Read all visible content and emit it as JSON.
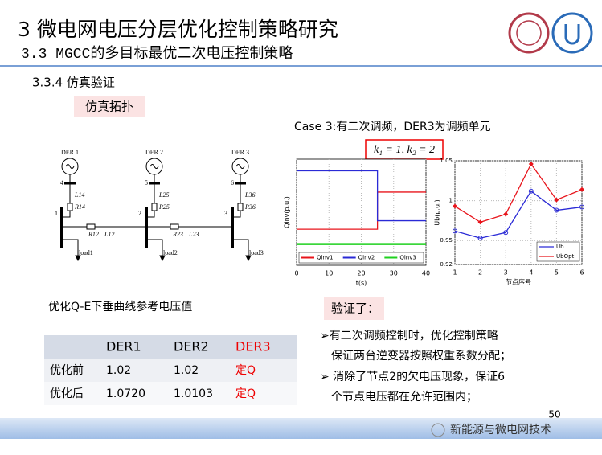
{
  "header": {
    "title": "3 微电网电压分层优化控制策略研究",
    "subtitle": "3.3 MGCC的多目标最优二次电压控制策略",
    "section": "3.3.4 仿真验证",
    "tag": "仿真拓扑"
  },
  "circuit": {
    "der": [
      "DER 1",
      "DER 2",
      "DER 3"
    ],
    "der_nodes": [
      "4",
      "5",
      "6"
    ],
    "buses": [
      "1",
      "2",
      "3"
    ],
    "branch": [
      "L14",
      "R14",
      "L25",
      "R25",
      "L36",
      "R36"
    ],
    "lines": [
      "R12",
      "L12",
      "R23",
      "L23"
    ],
    "loads": [
      "load1",
      "load2",
      "load3"
    ]
  },
  "case_title": "Case 3:有二次调频，DER3为调频单元",
  "formula": "k₁ = 1, k₂ = 2",
  "chart_data": [
    {
      "type": "line",
      "xlabel": "t(s)",
      "ylabel": "Qinv(p.u.)",
      "x": [
        0,
        25,
        25,
        40
      ],
      "xlim": [
        0,
        40
      ],
      "xticks": [
        0,
        10,
        20,
        30,
        40
      ],
      "ylim": [
        -0.2,
        0.8
      ],
      "grid": true,
      "series": [
        {
          "name": "Qinv1",
          "color": "#e8141b",
          "values": [
            0.14,
            0.14,
            0.49,
            0.49
          ]
        },
        {
          "name": "Qinv2",
          "color": "#2a2ad6",
          "values": [
            0.69,
            0.69,
            0.22,
            0.22
          ]
        },
        {
          "name": "Qinv3",
          "color": "#1fd11f",
          "values": [
            0,
            0,
            0,
            0
          ]
        }
      ],
      "legend": "bottom"
    },
    {
      "type": "line",
      "xlabel": "节点序号",
      "ylabel": "Ub(p.u.)",
      "x": [
        1,
        2,
        3,
        4,
        5,
        6
      ],
      "xlim": [
        1,
        6
      ],
      "xticks": [
        1,
        2,
        3,
        4,
        5,
        6
      ],
      "ylim": [
        0.92,
        1.05
      ],
      "yticks": [
        0.92,
        0.95,
        1,
        1.05
      ],
      "grid": true,
      "series": [
        {
          "name": "Ub",
          "color": "#2a2ad6",
          "values": [
            0.962,
            0.953,
            0.96,
            1.012,
            0.988,
            0.992
          ]
        },
        {
          "name": "UbOpt",
          "color": "#e8141b",
          "values": [
            0.993,
            0.973,
            0.983,
            1.046,
            1.001,
            1.014
          ]
        }
      ],
      "legend": "lower right"
    }
  ],
  "table": {
    "caption": "优化Q-E下垂曲线参考电压值",
    "header": [
      "DER1",
      "DER2",
      "DER3"
    ],
    "rows": [
      [
        "优化前",
        "1.02",
        "1.02",
        "定Q"
      ],
      [
        "优化后",
        "1.0720",
        "1.0103",
        "定Q"
      ]
    ]
  },
  "verify": {
    "title": "验证了：",
    "lines": [
      "➢有二次调频控制时，优化控制策略",
      "保证两台逆变器按照权重系数分配；",
      "➢ 消除了节点2的欠电压现象，保证6",
      "个节点电压都在允许范围内；"
    ]
  },
  "page_number": "50",
  "watermark": "新能源与微电网技术"
}
